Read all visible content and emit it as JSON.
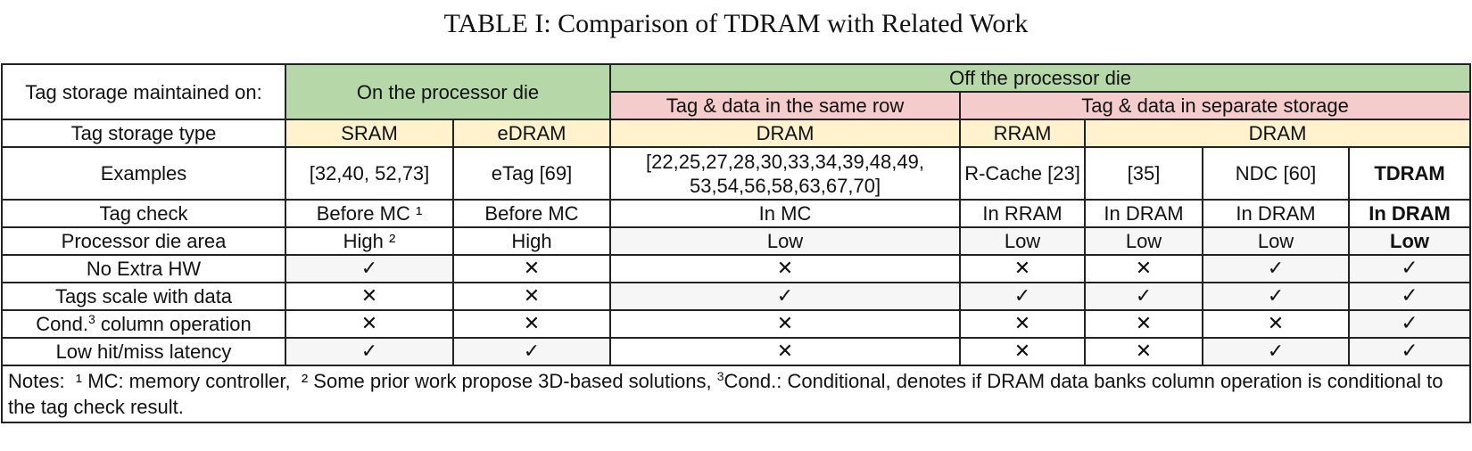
{
  "caption": "TABLE I: Comparison of TDRAM with Related Work",
  "header": {
    "storage_label": "Tag storage maintained on:",
    "on_die": "On the processor die",
    "off_die": "Off the processor die",
    "same_row": "Tag & data in the same row",
    "separate": "Tag & data in separate storage"
  },
  "type_row": {
    "label": "Tag storage type",
    "sram": "SRAM",
    "edram": "eDRAM",
    "dram_same": "DRAM",
    "rram": "RRAM",
    "dram_sep": "DRAM"
  },
  "examples": {
    "label": "Examples",
    "sram": "[32,40, 52,73]",
    "edram": "eTag [69]",
    "dram": "[22,25,27,28,30,33,34,39,48,49, 53,54,56,58,63,67,70]",
    "rram": "R-Cache [23]",
    "ref35": "[35]",
    "ndc": "NDC [60]",
    "tdram": "TDRAM"
  },
  "tag_check": {
    "label": "Tag check",
    "sram": "Before MC ¹",
    "edram": "Before MC",
    "dram": "In MC",
    "rram": "In RRAM",
    "ref35": "In DRAM",
    "ndc": "In DRAM",
    "tdram": "In DRAM"
  },
  "die_area": {
    "label": "Processor die area",
    "sram": "High ²",
    "edram": "High",
    "dram": "Low",
    "rram": "Low",
    "ref35": "Low",
    "ndc": "Low",
    "tdram": "Low"
  },
  "no_extra_hw": {
    "label": "No Extra HW",
    "sram": "✓",
    "edram": "✕",
    "dram": "✕",
    "rram": "✕",
    "ref35": "✕",
    "ndc": "✓",
    "tdram": "✓"
  },
  "tags_scale": {
    "label": "Tags scale with data",
    "sram": "✕",
    "edram": "✕",
    "dram": "✓",
    "rram": "✓",
    "ref35": "✓",
    "ndc": "✓",
    "tdram": "✓"
  },
  "cond_col": {
    "label_pre": "Cond.",
    "label_sup": "3",
    "label_post": " column operation",
    "sram": "✕",
    "edram": "✕",
    "dram": "✕",
    "rram": "✕",
    "ref35": "✕",
    "ndc": "✕",
    "tdram": "✓"
  },
  "latency": {
    "label": "Low hit/miss latency",
    "sram": "✓",
    "edram": "✓",
    "dram": "✕",
    "rram": "✕",
    "ref35": "✕",
    "ndc": "✓",
    "tdram": "✓"
  },
  "notes": {
    "part1": "Notes:  ¹ MC: memory controller,  ² Some prior work propose 3D-based solutions, ",
    "sup": "3",
    "part2": "Cond.: Conditional, denotes if DRAM data banks column operation is conditional to the tag check result."
  },
  "colors": {
    "green": "#b6d7a8",
    "pink": "#f4cccc",
    "yellow": "#fff2cc",
    "gray": "#f6f6f6"
  }
}
